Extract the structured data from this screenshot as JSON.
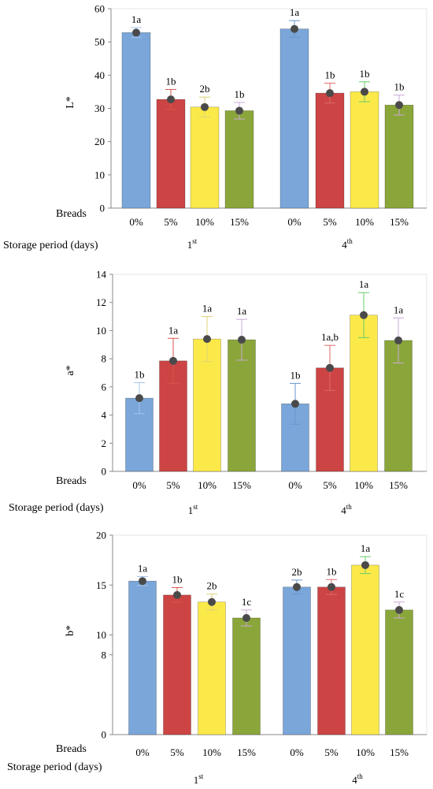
{
  "colors": {
    "0%": "#7aa6d9",
    "5%": "#cc4444",
    "10%": "#fbe94a",
    "15%": "#8aa63a",
    "marker": "#4a4a4a",
    "axis": "#8a8a8a"
  },
  "labels": {
    "breads": "Breads",
    "storage": "Storage period (days)"
  },
  "chart_data": [
    {
      "type": "bar",
      "ylabel": "L*",
      "ylim": [
        0,
        60
      ],
      "yticks": [
        0,
        10,
        20,
        30,
        40,
        50,
        60
      ],
      "groups": [
        "1st",
        "4th"
      ],
      "categories": [
        "0%",
        "5%",
        "10%",
        "15%"
      ],
      "values": [
        [
          52.8,
          32.7,
          30.4,
          29.3
        ],
        [
          53.9,
          34.6,
          35.0,
          31.0
        ]
      ],
      "errors": [
        [
          1.5,
          3.0,
          3.0,
          2.5
        ],
        [
          2.5,
          3.0,
          3.0,
          3.0
        ]
      ],
      "letters": [
        [
          "1a",
          "1b",
          "2b",
          "1b"
        ],
        [
          "1a",
          "1b",
          "1b",
          "1b"
        ]
      ]
    },
    {
      "type": "bar",
      "ylabel": "a*",
      "ylim": [
        0,
        14
      ],
      "yticks": [
        0,
        2,
        4,
        6,
        8,
        10,
        12,
        14
      ],
      "groups": [
        "1st",
        "4th"
      ],
      "categories": [
        "0%",
        "5%",
        "10%",
        "15%"
      ],
      "values": [
        [
          5.2,
          7.85,
          9.4,
          9.35
        ],
        [
          4.8,
          7.35,
          11.1,
          9.3
        ]
      ],
      "errors": [
        [
          1.1,
          1.6,
          1.6,
          1.45
        ],
        [
          1.45,
          1.6,
          1.6,
          1.6
        ]
      ],
      "letters": [
        [
          "1b",
          "1a",
          "1a",
          "1a"
        ],
        [
          "1b",
          "1a,b",
          "1a",
          "1a"
        ]
      ]
    },
    {
      "type": "bar",
      "ylabel": "b*",
      "ylim": [
        0,
        20
      ],
      "yticks": [
        0,
        8,
        10,
        15,
        20
      ],
      "ytick_labels": [
        "0",
        "8",
        "10",
        "15",
        "20"
      ],
      "groups": [
        "1st",
        "4th"
      ],
      "categories": [
        "0%",
        "5%",
        "10%",
        "15%"
      ],
      "values": [
        [
          15.4,
          14.0,
          13.3,
          11.7
        ],
        [
          14.8,
          14.8,
          17.0,
          12.5
        ]
      ],
      "errors": [
        [
          0.45,
          0.75,
          0.8,
          0.8
        ],
        [
          0.7,
          0.75,
          0.85,
          0.8
        ]
      ],
      "letters": [
        [
          "1a",
          "1b",
          "2b",
          "1c"
        ],
        [
          "2b",
          "1b",
          "1a",
          "1c"
        ]
      ]
    }
  ]
}
